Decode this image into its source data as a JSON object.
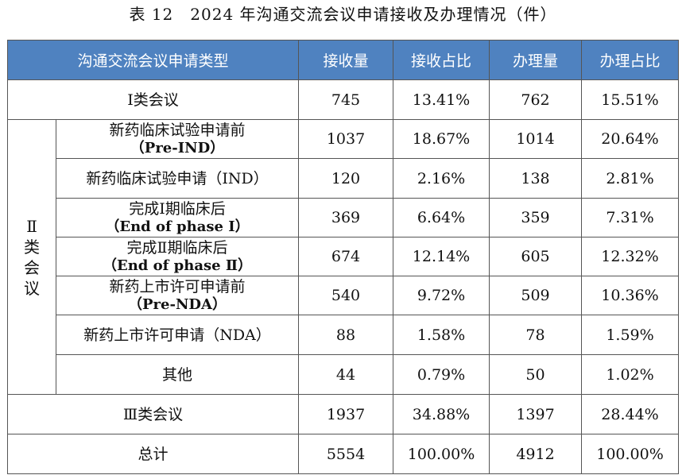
{
  "caption": "表 12　2024 年沟通交流会议申请接收及办理情况（件）",
  "headers": {
    "type": "沟通交流会议申请类型",
    "received": "接收量",
    "received_pct": "接收占比",
    "handled": "办理量",
    "handled_pct": "办理占比"
  },
  "rows": {
    "class1": {
      "label": "Ⅰ类会议",
      "received": "745",
      "received_pct": "13.41%",
      "handled": "762",
      "handled_pct": "15.51%"
    },
    "class2_group_label": "Ⅱ类会议",
    "pre_ind": {
      "label": "新药临床试验申请前",
      "sub": "（Pre-IND）",
      "received": "1037",
      "received_pct": "18.67%",
      "handled": "1014",
      "handled_pct": "20.64%"
    },
    "ind": {
      "label": "新药临床试验申请（IND）",
      "received": "120",
      "received_pct": "2.16%",
      "handled": "138",
      "handled_pct": "2.81%"
    },
    "eop1": {
      "label": "完成Ⅰ期临床后",
      "sub": "（End of phase Ⅰ）",
      "received": "369",
      "received_pct": "6.64%",
      "handled": "359",
      "handled_pct": "7.31%"
    },
    "eop2": {
      "label": "完成Ⅱ期临床后",
      "sub": "（End of phase Ⅱ）",
      "received": "674",
      "received_pct": "12.14%",
      "handled": "605",
      "handled_pct": "12.32%"
    },
    "pre_nda": {
      "label": "新药上市许可申请前",
      "sub": "（Pre-NDA）",
      "received": "540",
      "received_pct": "9.72%",
      "handled": "509",
      "handled_pct": "10.36%"
    },
    "nda": {
      "label": "新药上市许可申请（NDA）",
      "received": "88",
      "received_pct": "1.58%",
      "handled": "78",
      "handled_pct": "1.59%"
    },
    "other": {
      "label": "其他",
      "received": "44",
      "received_pct": "0.79%",
      "handled": "50",
      "handled_pct": "1.02%"
    },
    "class3": {
      "label": "Ⅲ类会议",
      "received": "1937",
      "received_pct": "34.88%",
      "handled": "1397",
      "handled_pct": "28.44%"
    },
    "total": {
      "label": "总计",
      "received": "5554",
      "received_pct": "100.00%",
      "handled": "4912",
      "handled_pct": "100.00%"
    }
  }
}
